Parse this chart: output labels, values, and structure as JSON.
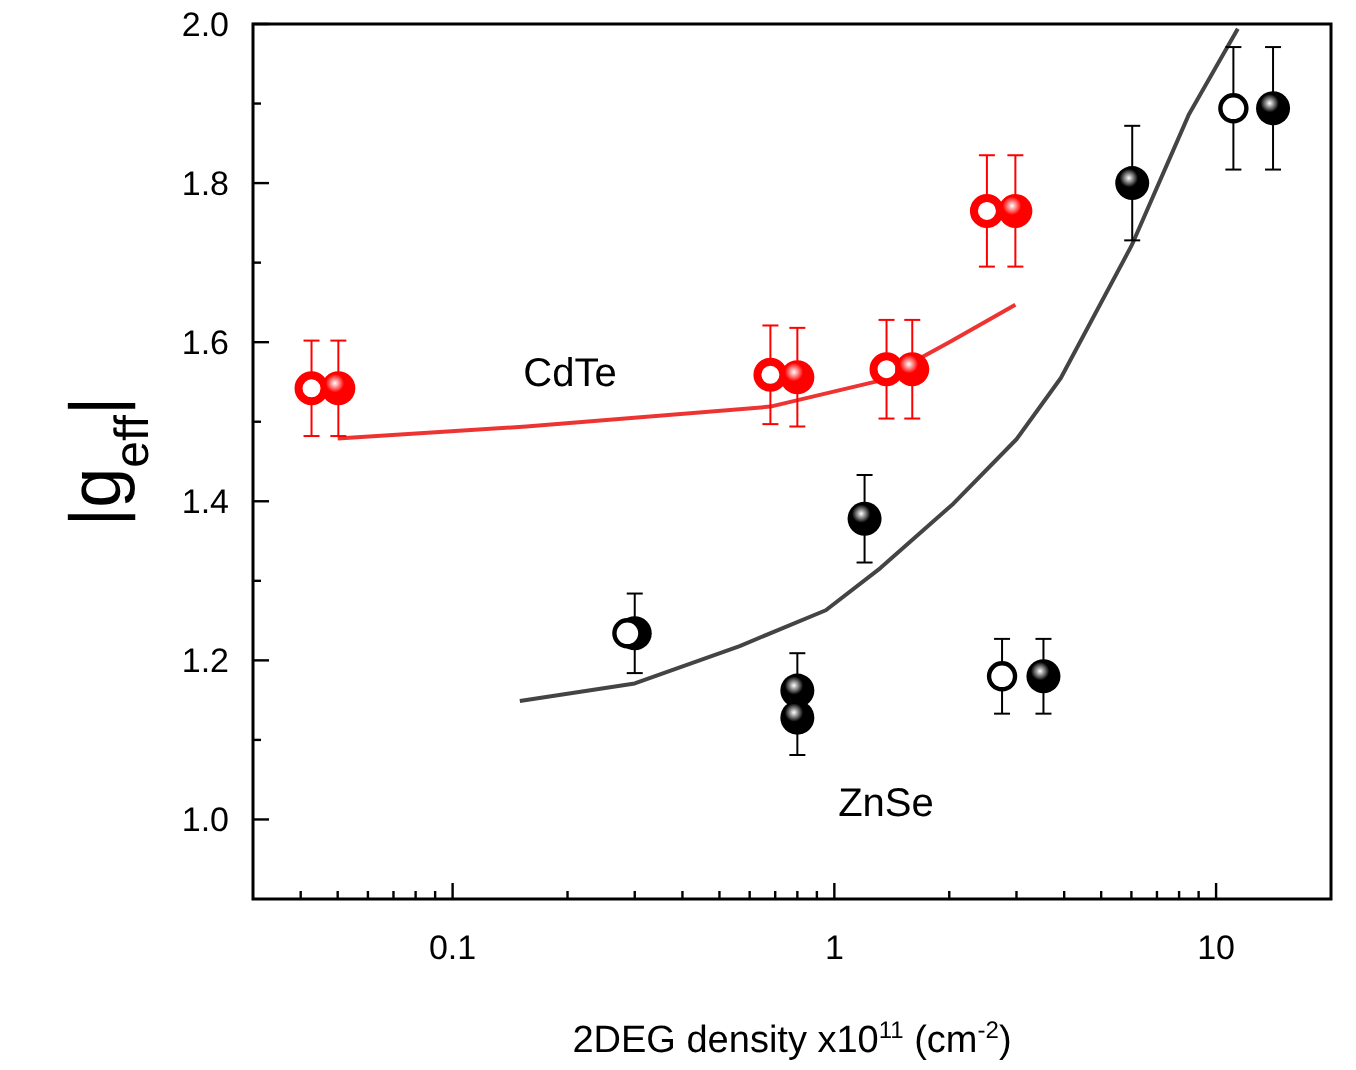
{
  "chart_data": {
    "type": "scatter",
    "xlabel": "2DEG density x10$^{11}$ (cm$^{-2}$)",
    "ylabel": "|g$_{eff}$|",
    "log": "x",
    "xlim": [
      0.03,
      20
    ],
    "ylim": [
      0.9,
      2.0
    ],
    "xticks": [
      {
        "value": 0.04,
        "label": null
      },
      {
        "value": 0.05,
        "label": null
      },
      {
        "value": 0.06,
        "label": null
      },
      {
        "value": 0.07,
        "label": null
      },
      {
        "value": 0.08,
        "label": null
      },
      {
        "value": 0.09,
        "label": null
      },
      0.1,
      {
        "value": 0.2,
        "label": null
      },
      {
        "value": 0.3,
        "label": null
      },
      {
        "value": 0.4,
        "label": null
      },
      {
        "value": 0.5,
        "label": null
      },
      {
        "value": 0.6,
        "label": null
      },
      {
        "value": 0.7,
        "label": null
      },
      {
        "value": 0.8,
        "label": null
      },
      {
        "value": 0.9,
        "label": null
      },
      1,
      {
        "value": 2,
        "label": null
      },
      {
        "value": 3,
        "label": null
      },
      {
        "value": 4,
        "label": null
      },
      {
        "value": 5,
        "label": null
      },
      {
        "value": 6,
        "label": null
      },
      {
        "value": 7,
        "label": null
      },
      {
        "value": 8,
        "label": null
      },
      {
        "value": 9,
        "label": null
      },
      10
    ],
    "yticks": [
      {
        "value": 1.0,
        "label": "1.0"
      },
      {
        "value": 1.1,
        "label": null
      },
      {
        "value": 1.2,
        "label": "1.2"
      },
      {
        "value": 1.3,
        "label": null
      },
      {
        "value": 1.4,
        "label": "1.4"
      },
      {
        "value": 1.5,
        "label": null
      },
      {
        "value": 1.6,
        "label": "1.6"
      },
      {
        "value": 1.7,
        "label": null
      },
      {
        "value": 1.8,
        "label": "1.8"
      },
      {
        "value": 1.9,
        "label": null
      },
      {
        "value": 2.0,
        "label": "2.0"
      }
    ],
    "grid": false,
    "series": [
      {
        "type": "line",
        "color": "#ee3333",
        "line_style": "solid",
        "marker": "none",
        "x": [
          0.05,
          0.156,
          0.68,
          1.3,
          2.0,
          2.98
        ],
        "values": [
          1.479,
          1.494,
          1.519,
          1.551,
          1.6,
          1.647
        ]
      },
      {
        "type": "line",
        "color": "#444444",
        "line_style": "solid",
        "marker": "none",
        "x": [
          0.15,
          0.3,
          0.565,
          0.95,
          1.32,
          2.05,
          3.0,
          3.92,
          6.0,
          8.5,
          11.4
        ],
        "values": [
          1.149,
          1.171,
          1.218,
          1.263,
          1.316,
          1.397,
          1.478,
          1.555,
          1.721,
          1.887,
          1.994
        ]
      },
      {
        "color": "#ff0000",
        "marker": "circle-open",
        "x": [
          0.0427,
          0.68,
          1.37,
          2.51
        ],
        "values": [
          1.542,
          1.559,
          1.566,
          1.765
        ],
        "errors": [
          0.06,
          0.062,
          0.062,
          0.07
        ]
      },
      {
        "color": "#ff0000",
        "marker": "circle",
        "x": [
          0.0502,
          0.8,
          1.6,
          2.98
        ],
        "values": [
          1.542,
          1.556,
          1.566,
          1.765
        ],
        "errors": [
          0.06,
          0.062,
          0.062,
          0.07
        ]
      },
      {
        "color": "#000000",
        "marker": "circle",
        "x": [
          0.3,
          0.8,
          0.8,
          1.2,
          3.53,
          6.03,
          14.1
        ],
        "values": [
          1.234,
          1.162,
          1.128,
          1.378,
          1.18,
          1.8,
          1.894
        ],
        "errors": [
          0.05,
          0.047,
          0.047,
          0.055,
          0.047,
          0.072,
          0.077
        ]
      },
      {
        "color": "#000000",
        "marker": "circle-open",
        "x": [
          0.287,
          2.75,
          11.1
        ],
        "values": [
          1.234,
          1.18,
          1.894
        ],
        "errors": [
          null,
          0.047,
          0.077
        ]
      }
    ],
    "annotations": [
      "CdTe",
      "ZnSe"
    ]
  }
}
